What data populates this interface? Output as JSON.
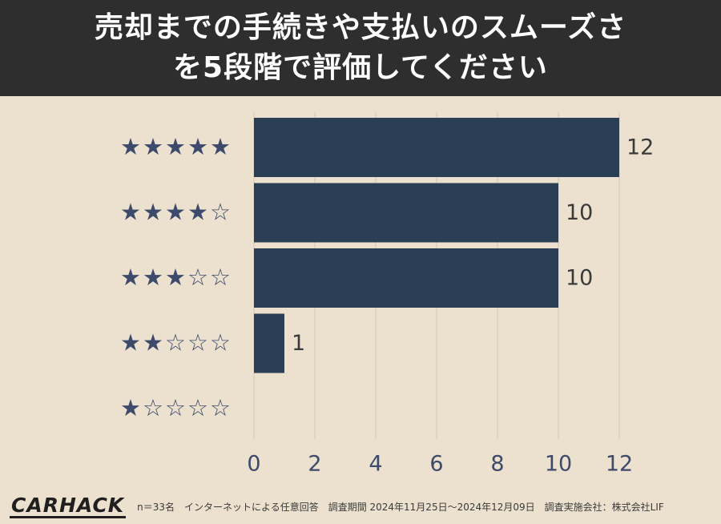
{
  "header": {
    "title_line1": "売却までの手続きや支払いのスムーズさ",
    "title_line2": "を5段階で評価してください"
  },
  "colors": {
    "bar": "#2c3e54",
    "star": "#3d4a6b",
    "background": "#ebe1ce",
    "header": "#2e2e2e"
  },
  "chart_data": {
    "type": "bar",
    "orientation": "horizontal",
    "categories": [
      "★★★★★",
      "★★★★☆",
      "★★★☆☆",
      "★★☆☆☆",
      "★☆☆☆☆"
    ],
    "values": [
      12,
      10,
      10,
      1,
      0
    ],
    "data_labels": [
      "12",
      "10",
      "10",
      "1",
      ""
    ],
    "xticks": [
      "0",
      "2",
      "4",
      "6",
      "8",
      "10",
      "12"
    ],
    "xlim": [
      0,
      12
    ],
    "grid": true,
    "title": "売却までの手続きや支払いのスムーズさを5段階で評価してください"
  },
  "footer": {
    "logo": "CARHACK",
    "note": "n＝33名　インターネットによる任意回答　調査期間 2024年11月25日～2024年12月09日　調査実施会社：株式会社LIF"
  }
}
